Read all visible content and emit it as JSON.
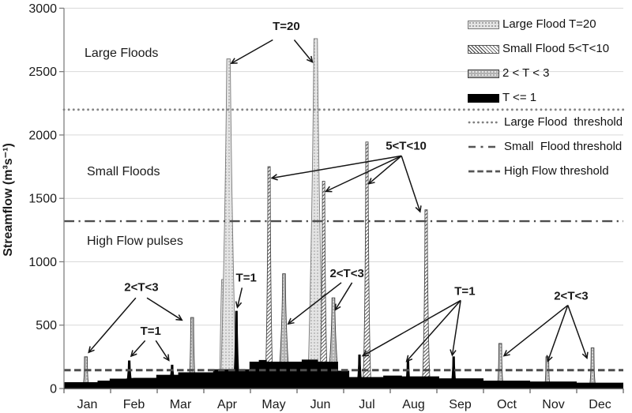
{
  "chart_data": {
    "type": "area",
    "title": "",
    "xlabel": "",
    "ylabel": "Streamflow (m³s⁻¹)",
    "ylim": [
      0,
      3000
    ],
    "yticks": [
      0,
      500,
      1000,
      1500,
      2000,
      2500,
      3000
    ],
    "months": [
      "Jan",
      "Feb",
      "Mar",
      "Apr",
      "May",
      "Jun",
      "Jul",
      "Aug",
      "Sep",
      "Oct",
      "Nov",
      "Dec"
    ],
    "grid": "horizontal",
    "zones": [
      {
        "label": "Large Floods"
      },
      {
        "label": "Small Floods"
      },
      {
        "label": "High Flow pulses"
      }
    ],
    "thresholds": [
      {
        "name": "Large Flood threshold",
        "value": 2200,
        "style": "dotted",
        "color": "#858585"
      },
      {
        "name": "Small Flood threshold",
        "value": 1320,
        "style": "dashdot",
        "color": "#4d4d4d"
      },
      {
        "name": "High Flow threshold",
        "value": 145,
        "style": "dashed",
        "color": "#4d4d4d"
      }
    ],
    "baseflow_m3s": [
      [
        0,
        50
      ],
      [
        0.72,
        50
      ],
      [
        0.72,
        62
      ],
      [
        0.98,
        62
      ],
      [
        0.98,
        78
      ],
      [
        1.32,
        78
      ],
      [
        1.5,
        84
      ],
      [
        1.98,
        84
      ],
      [
        1.98,
        108
      ],
      [
        2.45,
        108
      ],
      [
        2.45,
        128
      ],
      [
        3.2,
        128
      ],
      [
        3.2,
        152
      ],
      [
        3.98,
        152
      ],
      [
        3.98,
        212
      ],
      [
        4.18,
        212
      ],
      [
        4.18,
        225
      ],
      [
        4.35,
        225
      ],
      [
        4.35,
        212
      ],
      [
        5.1,
        212
      ],
      [
        5.1,
        228
      ],
      [
        5.45,
        228
      ],
      [
        5.45,
        212
      ],
      [
        5.88,
        212
      ],
      [
        5.88,
        140
      ],
      [
        6.12,
        140
      ],
      [
        6.12,
        90
      ],
      [
        6.85,
        90
      ],
      [
        6.85,
        102
      ],
      [
        7.25,
        102
      ],
      [
        7.25,
        96
      ],
      [
        8.05,
        96
      ],
      [
        8.05,
        80
      ],
      [
        9.0,
        80
      ],
      [
        9.0,
        62
      ],
      [
        10.0,
        62
      ],
      [
        10.0,
        55
      ],
      [
        11.0,
        55
      ],
      [
        11.0,
        46
      ],
      [
        12,
        46
      ]
    ],
    "flood_events": [
      {
        "month": "Jan",
        "x": 0.47,
        "peak": 250,
        "class": "2<T<3",
        "w": 4.5
      },
      {
        "month": "Feb",
        "x": 1.4,
        "peak": 218,
        "class": "T<=1",
        "w": 5.5
      },
      {
        "month": "Mar",
        "x": 2.32,
        "peak": 185,
        "class": "T<=1",
        "w": 7
      },
      {
        "month": "Mar",
        "x": 2.75,
        "peak": 560,
        "class": "2<T<3",
        "w": 5
      },
      {
        "month": "Apr",
        "x": 3.42,
        "peak": 860,
        "class": "T=20",
        "w": 5
      },
      {
        "month": "Apr",
        "x": 3.53,
        "peak": 2600,
        "class": "T=20",
        "w": 10
      },
      {
        "month": "Apr",
        "x": 3.7,
        "peak": 610,
        "class": "T<=1",
        "w": 5
      },
      {
        "month": "May",
        "x": 4.4,
        "peak": 1750,
        "class": "5<T<10",
        "w": 5.5
      },
      {
        "month": "May",
        "x": 4.72,
        "peak": 905,
        "class": "2<T<3",
        "w": 9
      },
      {
        "month": "Jun",
        "x": 5.4,
        "peak": 2760,
        "class": "T=20",
        "w": 10
      },
      {
        "month": "Jun",
        "x": 5.57,
        "peak": 1635,
        "class": "5<T<10",
        "w": 5.5
      },
      {
        "month": "Jun",
        "x": 5.78,
        "peak": 715,
        "class": "2<T<3",
        "w": 9
      },
      {
        "month": "Jul",
        "x": 6.34,
        "peak": 265,
        "class": "T<=1",
        "w": 4.5
      },
      {
        "month": "Jul",
        "x": 6.5,
        "peak": 1945,
        "class": "5<T<10",
        "w": 5.5
      },
      {
        "month": "Aug",
        "x": 7.38,
        "peak": 225,
        "class": "T<=1",
        "w": 4.5
      },
      {
        "month": "Aug",
        "x": 7.77,
        "peak": 1410,
        "class": "5<T<10",
        "w": 5.5
      },
      {
        "month": "Sep",
        "x": 8.36,
        "peak": 250,
        "class": "T<=1",
        "w": 4.5
      },
      {
        "month": "Oct",
        "x": 9.36,
        "peak": 355,
        "class": "2<T<3",
        "w": 4.5
      },
      {
        "month": "Nov",
        "x": 10.37,
        "peak": 250,
        "class": "2<T<3",
        "w": 4
      },
      {
        "month": "Dec",
        "x": 11.34,
        "peak": 320,
        "class": "2<T<3",
        "w": 4.5
      }
    ],
    "annotations": [
      {
        "text": "T=20",
        "x": 4.77,
        "y": 2860,
        "arrows": [
          [
            4.48,
            2750,
            3.59,
            2565
          ],
          [
            4.94,
            2750,
            5.33,
            2575
          ]
        ]
      },
      {
        "text": "2<T<3",
        "x": 1.66,
        "y": 800,
        "arrows": [
          [
            1.54,
            715,
            0.53,
            285
          ],
          [
            1.78,
            715,
            2.53,
            540
          ]
        ]
      },
      {
        "text": "T=1",
        "x": 1.86,
        "y": 455,
        "arrows": [
          [
            1.74,
            378,
            1.44,
            255
          ],
          [
            1.97,
            378,
            2.25,
            222
          ]
        ]
      },
      {
        "text": "T=1",
        "x": 3.91,
        "y": 875,
        "arrows": [
          [
            3.82,
            795,
            3.72,
            640
          ]
        ]
      },
      {
        "text": "2<T<3",
        "x": 6.07,
        "y": 910,
        "arrows": [
          [
            5.95,
            835,
            4.81,
            510
          ],
          [
            6.18,
            835,
            5.82,
            620
          ]
        ]
      },
      {
        "text": "5<T<10",
        "x": 7.34,
        "y": 1915,
        "arrows": [
          [
            7.24,
            1835,
            4.46,
            1660
          ],
          [
            7.24,
            1835,
            5.62,
            1555
          ],
          [
            7.24,
            1835,
            6.54,
            1615
          ],
          [
            7.24,
            1835,
            7.64,
            1395
          ]
        ]
      },
      {
        "text": "T=1",
        "x": 8.6,
        "y": 770,
        "arrows": [
          [
            8.51,
            695,
            6.41,
            258
          ],
          [
            8.51,
            695,
            7.35,
            215
          ],
          [
            8.51,
            695,
            8.33,
            262
          ]
        ]
      },
      {
        "text": "2<T<3",
        "x": 10.88,
        "y": 732,
        "arrows": [
          [
            10.81,
            657,
            9.44,
            258
          ],
          [
            10.81,
            657,
            10.38,
            215
          ],
          [
            10.81,
            657,
            11.22,
            240
          ]
        ]
      }
    ],
    "legend": {
      "items": [
        {
          "label": "Large Flood T=20",
          "swatch": "pattern-light-dots"
        },
        {
          "label": "Small Flood 5<T<10",
          "swatch": "pattern-hatch"
        },
        {
          "label": "2 < T < 3",
          "swatch": "pattern-gray-dots"
        },
        {
          "label": "T <= 1",
          "swatch": "solid-black"
        },
        {
          "label": "Large Flood  threshold",
          "swatch": "line-dotted"
        },
        {
          "label": "Small  Flood threshold",
          "swatch": "line-dashdot"
        },
        {
          "label": "High Flow threshold",
          "swatch": "line-dashed"
        }
      ]
    }
  }
}
